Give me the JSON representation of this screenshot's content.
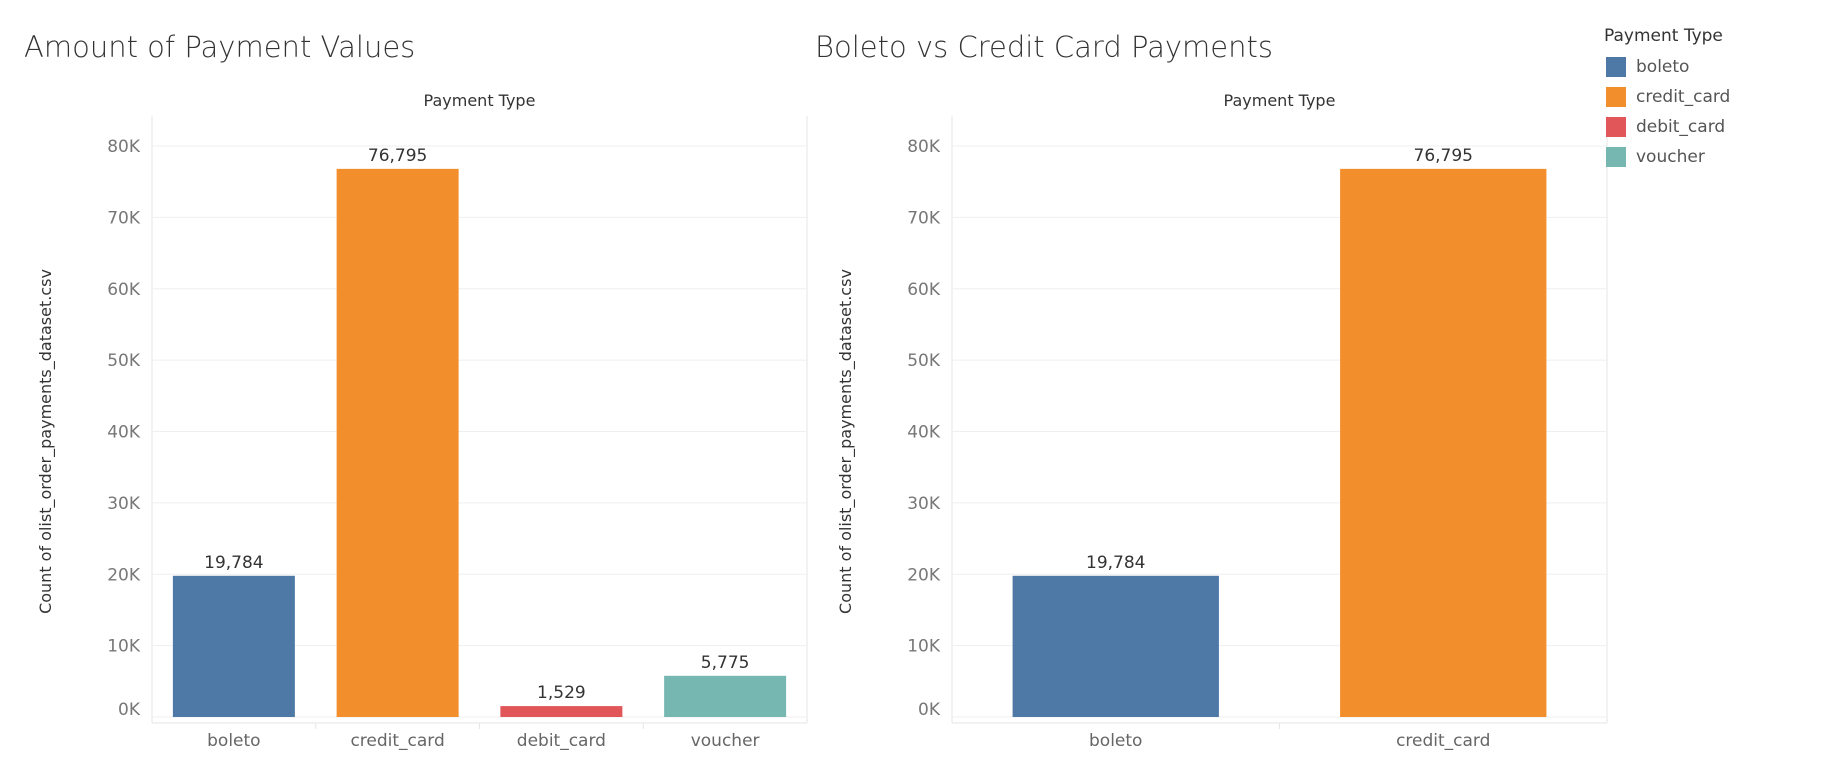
{
  "legend": {
    "title": "Payment Type",
    "items": [
      {
        "label": "boleto",
        "color": "#4e79a7"
      },
      {
        "label": "credit_card",
        "color": "#f28e2b"
      },
      {
        "label": "debit_card",
        "color": "#e15759"
      },
      {
        "label": "voucher",
        "color": "#76b7b2"
      }
    ]
  },
  "chart_data": [
    {
      "type": "bar",
      "title": "Amount of Payment Values",
      "xlabel": "Payment Type",
      "ylabel": "Count of olist_order_payments_dataset.csv",
      "categories": [
        "boleto",
        "credit_card",
        "debit_card",
        "voucher"
      ],
      "values": [
        19784,
        76795,
        1529,
        5775
      ],
      "value_labels": [
        "19,784",
        "76,795",
        "1,529",
        "5,775"
      ],
      "colors": [
        "#4e79a7",
        "#f28e2b",
        "#e15759",
        "#76b7b2"
      ],
      "ylim": [
        0,
        80000
      ],
      "yticks": [
        0,
        10000,
        20000,
        30000,
        40000,
        50000,
        60000,
        70000,
        80000
      ],
      "ytick_labels": [
        "0K",
        "10K",
        "20K",
        "30K",
        "40K",
        "50K",
        "60K",
        "70K",
        "80K"
      ],
      "grid": true,
      "legend": "right"
    },
    {
      "type": "bar",
      "title": "Boleto vs Credit Card Payments",
      "xlabel": "Payment Type",
      "ylabel": "Count of olist_order_payments_dataset.csv",
      "categories": [
        "boleto",
        "credit_card"
      ],
      "values": [
        19784,
        76795
      ],
      "value_labels": [
        "19,784",
        "76,795"
      ],
      "colors": [
        "#4e79a7",
        "#f28e2b"
      ],
      "ylim": [
        0,
        80000
      ],
      "yticks": [
        0,
        10000,
        20000,
        30000,
        40000,
        50000,
        60000,
        70000,
        80000
      ],
      "ytick_labels": [
        "0K",
        "10K",
        "20K",
        "30K",
        "40K",
        "50K",
        "60K",
        "70K",
        "80K"
      ],
      "grid": true,
      "legend": "right"
    }
  ]
}
